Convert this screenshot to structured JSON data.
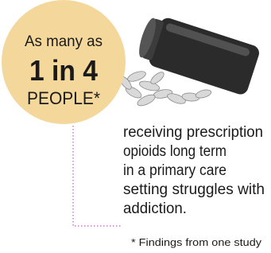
{
  "callout": {
    "line1": "As many as",
    "line2": "1 in 4",
    "line3": "PEOPLE*"
  },
  "body": {
    "lines": [
      "receiving prescription",
      "opioids long term",
      "in a primary care",
      "setting struggles with",
      "addiction."
    ]
  },
  "footnote": "* Findings from one study"
}
